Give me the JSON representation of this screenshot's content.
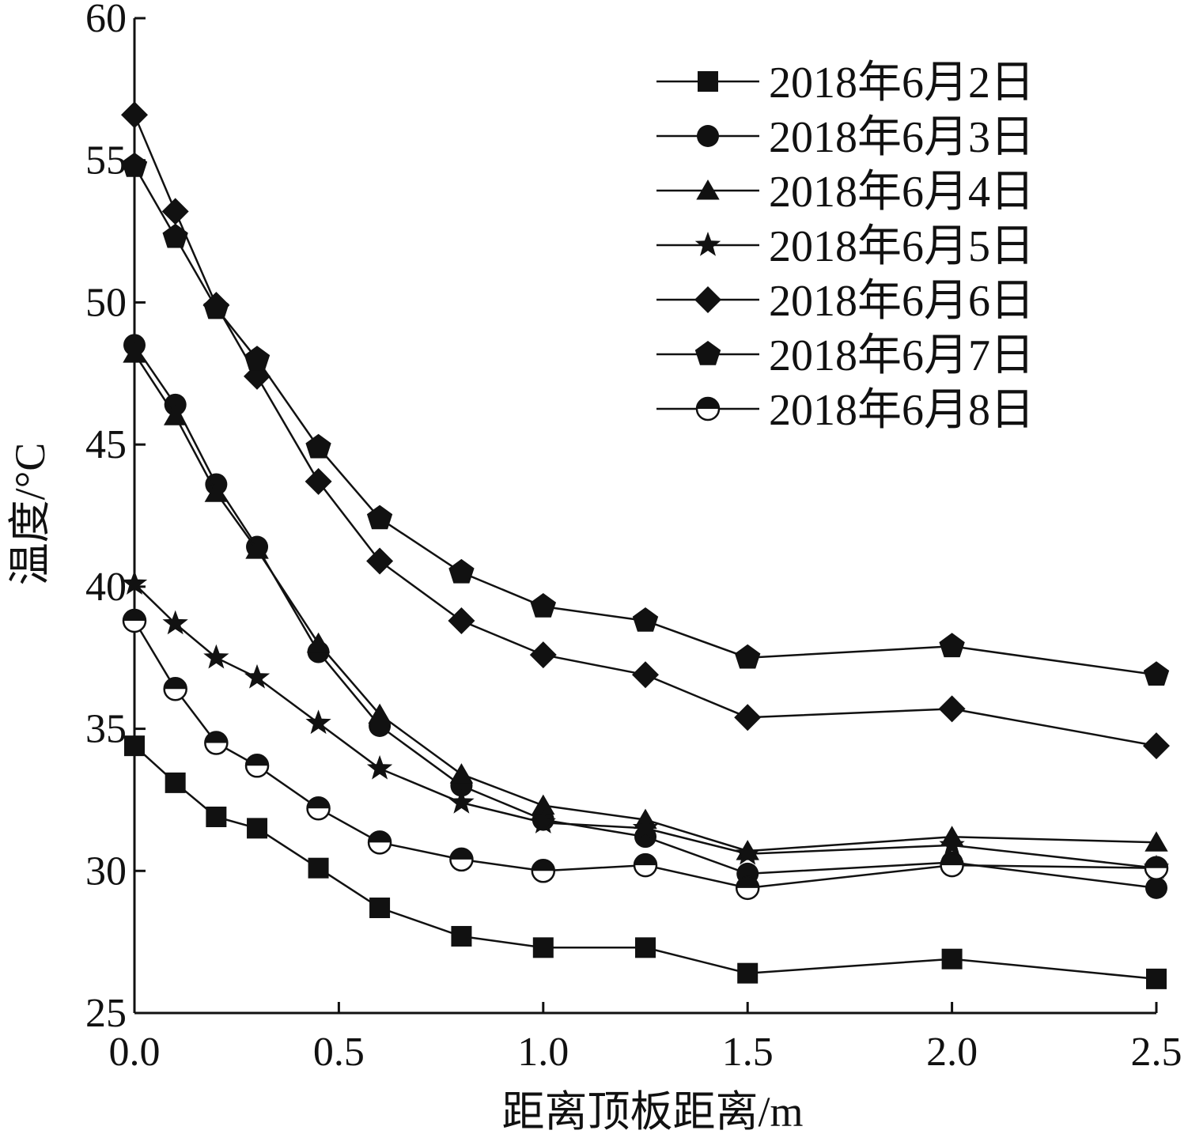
{
  "chart_data": {
    "type": "line",
    "xlabel": "距离顶板距离/m",
    "ylabel": "温度/°C",
    "xlim": [
      0,
      2.5
    ],
    "ylim": [
      25,
      60
    ],
    "xticks": [
      "0.0",
      "0.5",
      "1.0",
      "1.5",
      "2.0",
      "2.5"
    ],
    "yticks": [
      "25",
      "30",
      "35",
      "40",
      "45",
      "50",
      "55",
      "60"
    ],
    "grid": false,
    "legend_position": "top-right",
    "x": [
      0,
      0.1,
      0.2,
      0.3,
      0.45,
      0.6,
      0.8,
      1.0,
      1.25,
      1.5,
      2.0,
      2.5
    ],
    "series": [
      {
        "name": "2018年6月2日",
        "marker": "square",
        "values": [
          34.4,
          33.1,
          31.9,
          31.5,
          30.1,
          28.7,
          27.7,
          27.3,
          27.3,
          26.4,
          26.9,
          26.2
        ]
      },
      {
        "name": "2018年6月3日",
        "marker": "circle",
        "values": [
          48.5,
          46.4,
          43.6,
          41.4,
          37.7,
          35.1,
          33.0,
          31.8,
          31.2,
          29.9,
          30.3,
          29.4
        ]
      },
      {
        "name": "2018年6月4日",
        "marker": "triangle",
        "values": [
          48.2,
          46.0,
          43.3,
          41.3,
          38.0,
          35.5,
          33.4,
          32.3,
          31.8,
          30.7,
          31.2,
          31.0
        ]
      },
      {
        "name": "2018年6月5日",
        "marker": "star",
        "values": [
          40.1,
          38.7,
          37.5,
          36.8,
          35.2,
          33.6,
          32.4,
          31.7,
          31.5,
          30.6,
          30.9,
          30.1
        ]
      },
      {
        "name": "2018年6月6日",
        "marker": "diamond",
        "values": [
          56.6,
          53.2,
          49.9,
          47.4,
          43.7,
          40.9,
          38.8,
          37.6,
          36.9,
          35.4,
          35.7,
          34.4
        ]
      },
      {
        "name": "2018年6月7日",
        "marker": "pentagon",
        "values": [
          54.8,
          52.3,
          49.8,
          48.0,
          44.9,
          42.4,
          40.5,
          39.3,
          38.8,
          37.5,
          37.9,
          36.9
        ]
      },
      {
        "name": "2018年6月8日",
        "marker": "half-circle",
        "values": [
          38.8,
          36.4,
          34.5,
          33.7,
          32.2,
          31.0,
          30.4,
          30.0,
          30.2,
          29.4,
          30.2,
          30.1
        ]
      }
    ]
  }
}
